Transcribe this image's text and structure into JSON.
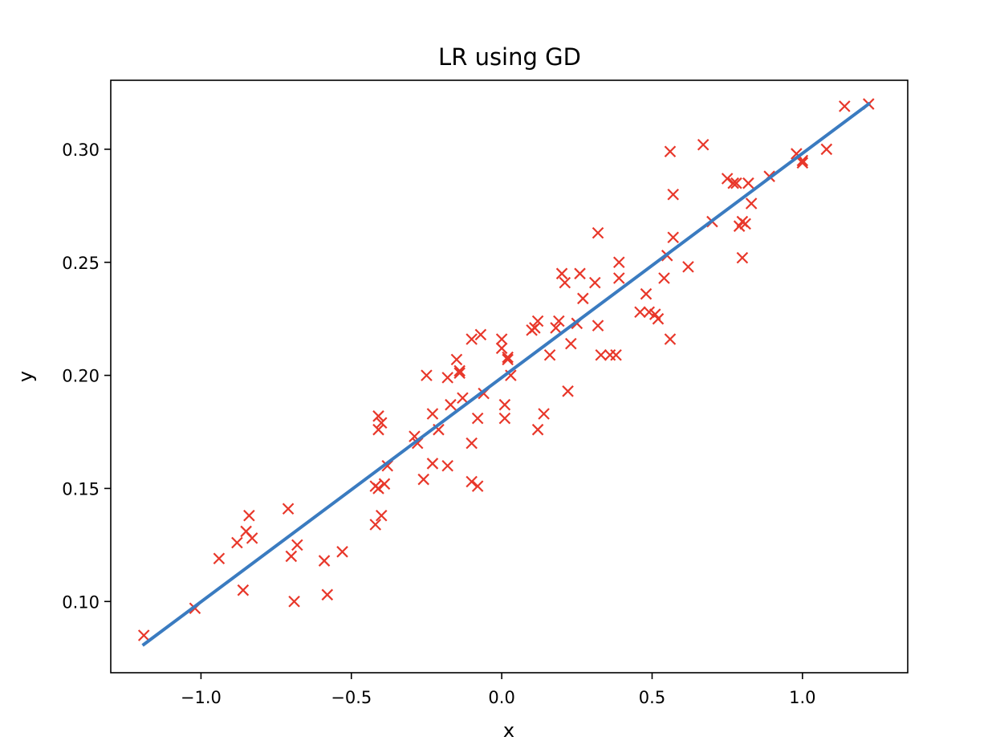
{
  "chart_data": {
    "type": "scatter",
    "title": "LR using GD",
    "xlabel": "x",
    "ylabel": "y",
    "xlim": [
      -1.3,
      1.35
    ],
    "ylim": [
      0.0685,
      0.3305
    ],
    "xticks": [
      -1.0,
      -0.5,
      0.0,
      0.5,
      1.0
    ],
    "xtick_labels": [
      "−1.0",
      "−0.5",
      "0.0",
      "0.5",
      "1.0"
    ],
    "yticks": [
      0.1,
      0.15,
      0.2,
      0.25,
      0.3
    ],
    "ytick_labels": [
      "0.10",
      "0.15",
      "0.20",
      "0.25",
      "0.30"
    ],
    "grid": false,
    "series": [
      {
        "kind": "scatter",
        "marker": "x",
        "color": "#e8372a",
        "points": [
          [
            -1.19,
            0.085
          ],
          [
            -1.02,
            0.097
          ],
          [
            -0.94,
            0.119
          ],
          [
            -0.88,
            0.126
          ],
          [
            -0.86,
            0.105
          ],
          [
            -0.85,
            0.131
          ],
          [
            -0.84,
            0.138
          ],
          [
            -0.83,
            0.128
          ],
          [
            -0.71,
            0.141
          ],
          [
            -0.7,
            0.12
          ],
          [
            -0.69,
            0.1
          ],
          [
            -0.68,
            0.125
          ],
          [
            -0.59,
            0.118
          ],
          [
            -0.58,
            0.103
          ],
          [
            -0.53,
            0.122
          ],
          [
            -0.42,
            0.151
          ],
          [
            -0.42,
            0.134
          ],
          [
            -0.41,
            0.182
          ],
          [
            -0.41,
            0.176
          ],
          [
            -0.41,
            0.15
          ],
          [
            -0.4,
            0.179
          ],
          [
            -0.4,
            0.138
          ],
          [
            -0.39,
            0.152
          ],
          [
            -0.38,
            0.16
          ],
          [
            -0.29,
            0.173
          ],
          [
            -0.28,
            0.17
          ],
          [
            -0.26,
            0.154
          ],
          [
            -0.25,
            0.2
          ],
          [
            -0.23,
            0.161
          ],
          [
            -0.23,
            0.183
          ],
          [
            -0.21,
            0.176
          ],
          [
            -0.18,
            0.199
          ],
          [
            -0.18,
            0.16
          ],
          [
            -0.17,
            0.187
          ],
          [
            -0.15,
            0.207
          ],
          [
            -0.14,
            0.201
          ],
          [
            -0.14,
            0.202
          ],
          [
            -0.13,
            0.19
          ],
          [
            -0.1,
            0.216
          ],
          [
            -0.1,
            0.17
          ],
          [
            -0.1,
            0.153
          ],
          [
            -0.08,
            0.151
          ],
          [
            -0.08,
            0.181
          ],
          [
            -0.07,
            0.218
          ],
          [
            -0.06,
            0.192
          ],
          [
            0.0,
            0.216
          ],
          [
            0.0,
            0.212
          ],
          [
            0.01,
            0.181
          ],
          [
            0.01,
            0.187
          ],
          [
            0.02,
            0.207
          ],
          [
            0.02,
            0.208
          ],
          [
            0.03,
            0.2
          ],
          [
            0.1,
            0.22
          ],
          [
            0.11,
            0.221
          ],
          [
            0.12,
            0.224
          ],
          [
            0.12,
            0.176
          ],
          [
            0.14,
            0.183
          ],
          [
            0.16,
            0.209
          ],
          [
            0.18,
            0.221
          ],
          [
            0.19,
            0.224
          ],
          [
            0.2,
            0.245
          ],
          [
            0.21,
            0.241
          ],
          [
            0.22,
            0.193
          ],
          [
            0.23,
            0.214
          ],
          [
            0.25,
            0.223
          ],
          [
            0.26,
            0.245
          ],
          [
            0.27,
            0.234
          ],
          [
            0.31,
            0.241
          ],
          [
            0.32,
            0.222
          ],
          [
            0.32,
            0.263
          ],
          [
            0.33,
            0.209
          ],
          [
            0.36,
            0.209
          ],
          [
            0.38,
            0.209
          ],
          [
            0.39,
            0.25
          ],
          [
            0.39,
            0.243
          ],
          [
            0.46,
            0.228
          ],
          [
            0.48,
            0.236
          ],
          [
            0.49,
            0.228
          ],
          [
            0.51,
            0.227
          ],
          [
            0.52,
            0.225
          ],
          [
            0.54,
            0.243
          ],
          [
            0.55,
            0.253
          ],
          [
            0.56,
            0.299
          ],
          [
            0.56,
            0.216
          ],
          [
            0.57,
            0.28
          ],
          [
            0.57,
            0.261
          ],
          [
            0.62,
            0.248
          ],
          [
            0.67,
            0.302
          ],
          [
            0.7,
            0.268
          ],
          [
            0.75,
            0.287
          ],
          [
            0.77,
            0.285
          ],
          [
            0.78,
            0.285
          ],
          [
            0.79,
            0.266
          ],
          [
            0.8,
            0.252
          ],
          [
            0.8,
            0.268
          ],
          [
            0.81,
            0.267
          ],
          [
            0.82,
            0.285
          ],
          [
            0.83,
            0.276
          ],
          [
            0.89,
            0.288
          ],
          [
            0.98,
            0.298
          ],
          [
            1.0,
            0.294
          ],
          [
            1.0,
            0.295
          ],
          [
            1.08,
            0.3
          ],
          [
            1.14,
            0.319
          ],
          [
            1.22,
            0.32
          ]
        ]
      },
      {
        "kind": "line",
        "color": "#3a7bc0",
        "points": [
          [
            -1.19,
            0.081
          ],
          [
            1.22,
            0.32
          ]
        ]
      }
    ]
  }
}
